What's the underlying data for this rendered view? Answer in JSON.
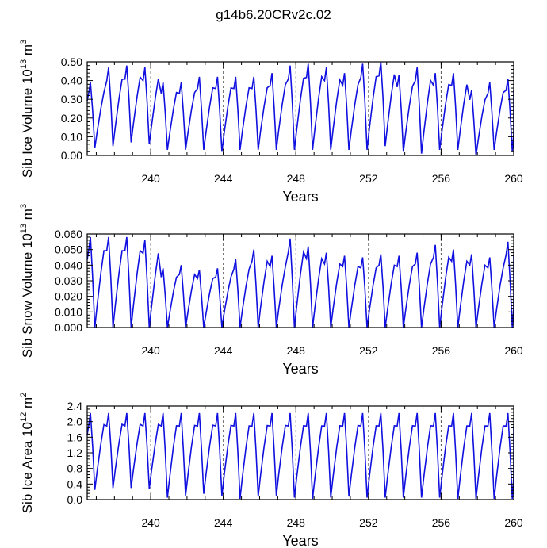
{
  "figure_title": "g14b6.20CRv2c.02",
  "colors": {
    "line": "#1010e0",
    "axis": "#000000",
    "grid": "#555555"
  },
  "chart_data": [
    {
      "type": "line",
      "ylabel": "Sib Ice Volume 10",
      "ylabel_sup": "13",
      "ylabel_unit": " m",
      "ylabel_unit_sup": "3",
      "xlabel": "Years",
      "xlim": [
        236.5,
        260
      ],
      "ylim": [
        0,
        0.5
      ],
      "xticks": [
        240,
        244,
        248,
        252,
        256,
        260
      ],
      "xtick_labels": [
        "240",
        "244",
        "248",
        "252",
        "256",
        "260"
      ],
      "yticks": [
        0.0,
        0.1,
        0.2,
        0.3,
        0.4,
        0.5
      ],
      "ytick_labels": [
        "0.00",
        "0.10",
        "0.20",
        "0.30",
        "0.40",
        "0.50"
      ],
      "dashed_vlines": [
        240,
        244,
        248,
        252,
        256
      ],
      "series": [
        {
          "max": [
            0.39,
            0.47,
            0.48,
            0.47,
            0.39,
            0.39,
            0.42,
            0.42,
            0.42,
            0.42,
            0.44,
            0.48,
            0.49,
            0.47,
            0.44,
            0.49,
            0.5,
            0.43,
            0.47,
            0.44,
            0.44,
            0.35,
            0.39,
            0.41
          ],
          "min": [
            0.04,
            0.05,
            0.07,
            0.06,
            0.03,
            0.03,
            0.03,
            0.02,
            0.03,
            0.03,
            0.03,
            0.03,
            0.03,
            0.03,
            0.03,
            0.03,
            0.05,
            0.02,
            0.01,
            0.03,
            0.03,
            0.0,
            0.03,
            0.02
          ]
        }
      ]
    },
    {
      "type": "line",
      "ylabel": "Sib Snow Volume 10",
      "ylabel_sup": "13",
      "ylabel_unit": " m",
      "ylabel_unit_sup": "3",
      "xlabel": "Years",
      "xlim": [
        236.5,
        260
      ],
      "ylim": [
        0,
        0.06
      ],
      "xticks": [
        240,
        244,
        248,
        252,
        256,
        260
      ],
      "xtick_labels": [
        "240",
        "244",
        "248",
        "252",
        "256",
        "260"
      ],
      "yticks": [
        0.0,
        0.01,
        0.02,
        0.03,
        0.04,
        0.05,
        0.06
      ],
      "ytick_labels": [
        "0.000",
        "0.010",
        "0.020",
        "0.030",
        "0.040",
        "0.050",
        "0.060"
      ],
      "dashed_vlines": [
        240,
        244,
        248,
        252,
        256
      ],
      "series": [
        {
          "max": [
            0.058,
            0.058,
            0.058,
            0.056,
            0.038,
            0.04,
            0.037,
            0.038,
            0.044,
            0.05,
            0.046,
            0.057,
            0.052,
            0.048,
            0.046,
            0.045,
            0.047,
            0.046,
            0.048,
            0.053,
            0.05,
            0.047,
            0.045,
            0.055
          ],
          "min": [
            0.0,
            0.0,
            0.0,
            0.0,
            0.0,
            0.0,
            0.0,
            0.0,
            0.0,
            0.0,
            0.0,
            0.0,
            0.0,
            0.0,
            0.0,
            0.0,
            0.0,
            0.0,
            0.0,
            0.0,
            0.0,
            0.0,
            0.0,
            0.0
          ]
        }
      ]
    },
    {
      "type": "line",
      "ylabel": "Sib Ice Area 10",
      "ylabel_sup": "12",
      "ylabel_unit": " m",
      "ylabel_unit_sup": "2",
      "xlabel": "Years",
      "xlim": [
        236.5,
        260
      ],
      "ylim": [
        0,
        2.4
      ],
      "xticks": [
        240,
        244,
        248,
        252,
        256,
        260
      ],
      "xtick_labels": [
        "240",
        "244",
        "248",
        "252",
        "256",
        "260"
      ],
      "yticks": [
        0.0,
        0.4,
        0.8,
        1.2,
        1.6,
        2.0,
        2.4
      ],
      "ytick_labels": [
        "0.0",
        "0.4",
        "0.8",
        "1.2",
        "1.6",
        "2.0",
        "2.4"
      ],
      "dashed_vlines": [
        240,
        244,
        248,
        252,
        256
      ],
      "series": [
        {
          "max": [
            2.22,
            2.22,
            2.22,
            2.22,
            2.22,
            2.22,
            2.22,
            2.22,
            2.22,
            2.22,
            2.22,
            2.22,
            2.22,
            2.22,
            2.22,
            2.22,
            2.22,
            2.22,
            2.22,
            2.22,
            2.22,
            2.22,
            2.22,
            2.22
          ],
          "min": [
            0.25,
            0.3,
            0.3,
            0.28,
            0.05,
            0.1,
            0.15,
            0.1,
            0.02,
            0.08,
            0.1,
            0.05,
            0.02,
            0.05,
            0.08,
            0.05,
            0.05,
            0.05,
            0.05,
            0.05,
            0.02,
            0.02,
            0.02,
            0.02
          ]
        }
      ]
    }
  ]
}
